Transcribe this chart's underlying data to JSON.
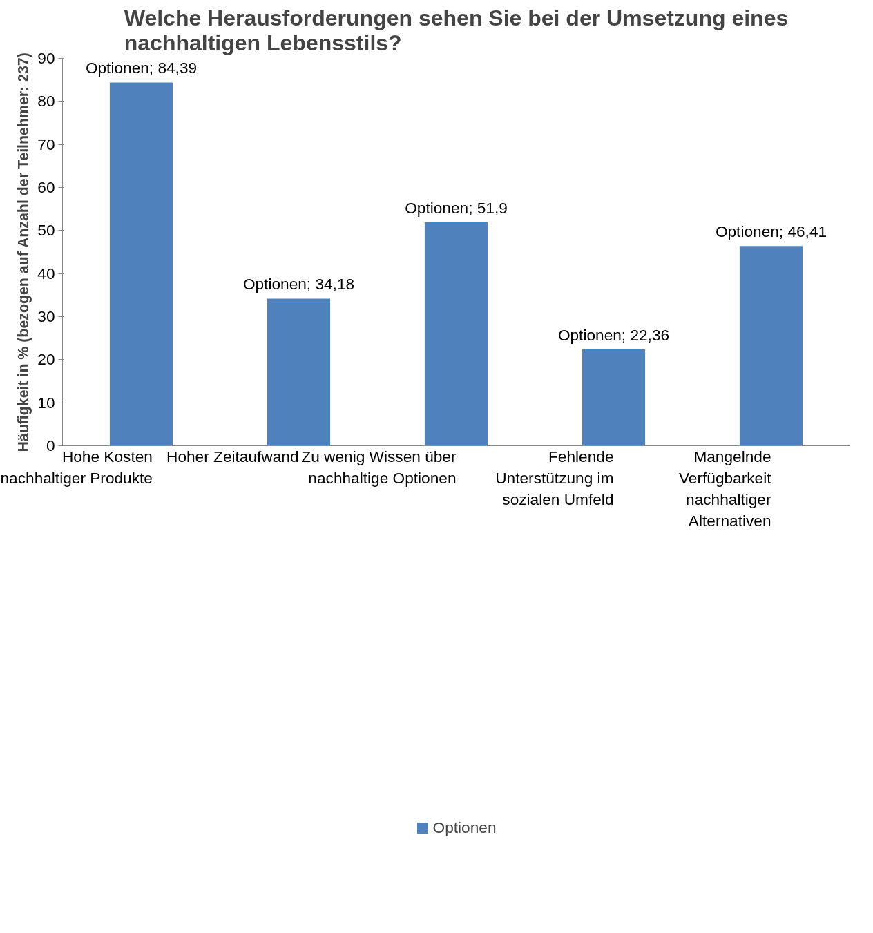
{
  "chart_data": {
    "type": "bar",
    "title": "Welche Herausforderungen sehen Sie bei der Umsetzung eines nachhaltigen Lebensstils?",
    "ylabel": "Häufigkeit in % (bezogen auf Anzahl der Teilnehmer: 237)",
    "categories": [
      "Hohe Kosten nachhaltiger Produkte",
      "Hoher Zeitaufwand",
      "Zu wenig Wissen über nachhaltige Optionen",
      "Fehlende Unterstützung im sozialen Umfeld",
      "Mangelnde Verfügbarkeit nachhaltiger Alternativen"
    ],
    "series": [
      {
        "name": "Optionen",
        "color": "#4f81bd",
        "values": [
          84.39,
          34.18,
          51.9,
          22.36,
          46.41
        ],
        "value_labels": [
          "Optionen; 84,39",
          "Optionen; 34,18",
          "Optionen; 51,9",
          "Optionen; 22,36",
          "Optionen; 46,41"
        ]
      }
    ],
    "ylim": [
      0,
      90
    ],
    "yticks": [
      0,
      10,
      20,
      30,
      40,
      50,
      60,
      70,
      80,
      90
    ],
    "grid": false,
    "legend": "bottom"
  }
}
